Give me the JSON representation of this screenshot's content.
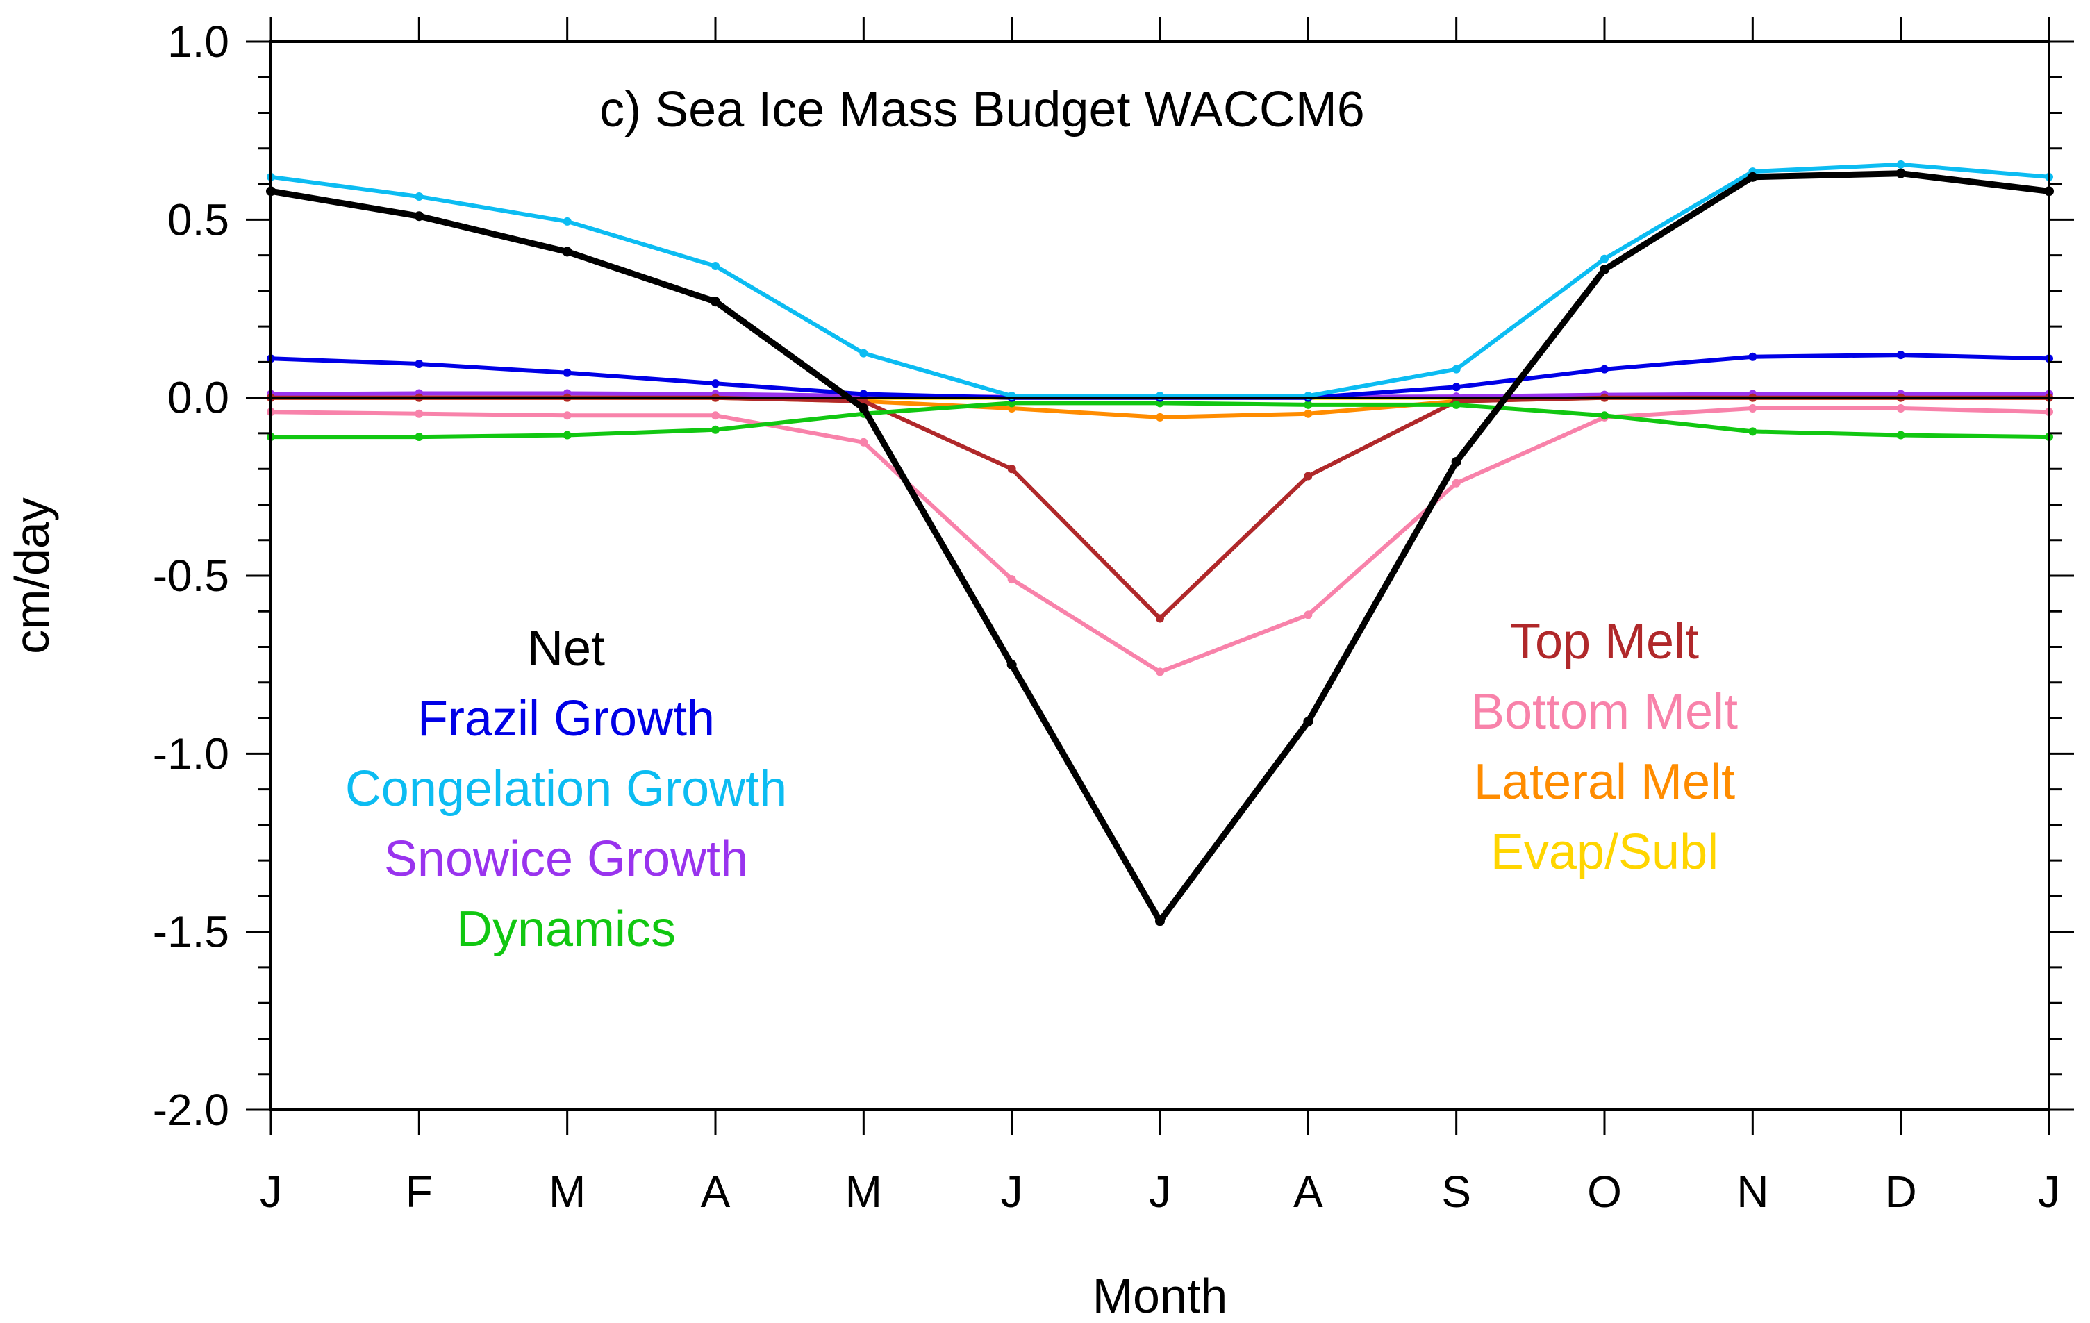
{
  "chart_data": {
    "type": "line",
    "title": "c) Sea Ice Mass Budget WACCM6",
    "xlabel": "Month",
    "ylabel": "cm/day",
    "categories": [
      "J",
      "F",
      "M",
      "A",
      "M",
      "J",
      "J",
      "A",
      "S",
      "O",
      "N",
      "D",
      "J"
    ],
    "ylim": [
      -2.0,
      1.0
    ],
    "yticks": [
      1.0,
      0.5,
      0.0,
      -0.5,
      -1.0,
      -1.5,
      -2.0
    ],
    "ytick_labels": [
      "1.0",
      "0.5",
      "0.0",
      "-0.5",
      "-1.0",
      "-1.5",
      "-2.0"
    ],
    "y_minor_step": 0.1,
    "grid": false,
    "zero_line": true,
    "series": [
      {
        "name": "Net",
        "color": "#000000",
        "legend_column": "left",
        "values": [
          0.58,
          0.51,
          0.41,
          0.27,
          -0.03,
          -0.75,
          -1.47,
          -0.91,
          -0.18,
          0.36,
          0.62,
          0.63,
          0.58
        ]
      },
      {
        "name": "Frazil Growth",
        "color": "#0000e6",
        "legend_column": "left",
        "values": [
          0.11,
          0.095,
          0.07,
          0.04,
          0.01,
          0.0,
          0.0,
          0.0,
          0.03,
          0.08,
          0.115,
          0.12,
          0.11
        ]
      },
      {
        "name": "Congelation Growth",
        "color": "#0cbcf2",
        "legend_column": "left",
        "values": [
          0.62,
          0.565,
          0.495,
          0.37,
          0.125,
          0.005,
          0.005,
          0.005,
          0.08,
          0.39,
          0.635,
          0.655,
          0.62
        ]
      },
      {
        "name": "Snowice Growth",
        "color": "#9933ee",
        "legend_column": "left",
        "values": [
          0.01,
          0.012,
          0.012,
          0.01,
          0.005,
          0.002,
          0.002,
          0.002,
          0.003,
          0.008,
          0.01,
          0.01,
          0.01
        ]
      },
      {
        "name": "Dynamics",
        "color": "#11c711",
        "legend_column": "left",
        "values": [
          -0.11,
          -0.11,
          -0.105,
          -0.09,
          -0.045,
          -0.015,
          -0.015,
          -0.02,
          -0.02,
          -0.05,
          -0.095,
          -0.105,
          -0.11
        ]
      },
      {
        "name": "Top Melt",
        "color": "#b0282a",
        "legend_column": "right",
        "values": [
          0.0,
          0.0,
          0.0,
          0.0,
          -0.01,
          -0.2,
          -0.62,
          -0.22,
          -0.01,
          0.0,
          0.0,
          0.0,
          0.0
        ]
      },
      {
        "name": "Bottom Melt",
        "color": "#f882aa",
        "legend_column": "right",
        "values": [
          -0.04,
          -0.045,
          -0.05,
          -0.05,
          -0.125,
          -0.51,
          -0.77,
          -0.61,
          -0.24,
          -0.055,
          -0.03,
          -0.03,
          -0.04
        ]
      },
      {
        "name": "Lateral Melt",
        "color": "#ff8c00",
        "legend_column": "right",
        "values": [
          0.0,
          0.0,
          0.0,
          0.0,
          -0.01,
          -0.03,
          -0.055,
          -0.045,
          -0.01,
          0.0,
          0.0,
          0.0,
          0.0
        ]
      },
      {
        "name": "Evap/Subl",
        "color": "#ffd500",
        "legend_column": "right",
        "values": [
          0.0,
          0.0,
          0.0,
          0.0,
          0.0,
          0.0,
          0.0,
          0.0,
          0.0,
          0.0,
          0.0,
          0.0,
          0.0
        ]
      }
    ]
  }
}
